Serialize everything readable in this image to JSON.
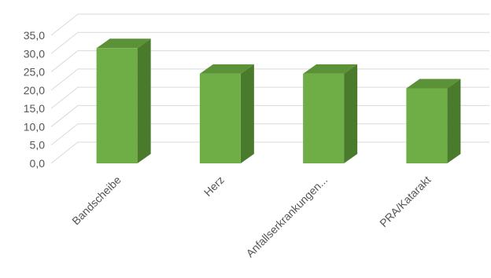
{
  "chart_data": {
    "type": "bar",
    "title": "",
    "xlabel": "",
    "ylabel": "",
    "categories": [
      "Bandscheibe",
      "Herz",
      "Anfallserkrankungen...",
      "PRA/Katarakt"
    ],
    "values": [
      31.5,
      24.5,
      24.5,
      20.5
    ],
    "ylim": [
      0,
      35
    ],
    "yticks": [
      "0,0",
      "5,0",
      "10,0",
      "15,0",
      "20,0",
      "25,0",
      "30,0",
      "35,0"
    ],
    "grid": true,
    "three_d": true,
    "colors": {
      "bar_front": "#6fad46",
      "bar_side": "#4a7a2c",
      "bar_top": "#5b9237",
      "grid": "#d9d9d9"
    }
  }
}
